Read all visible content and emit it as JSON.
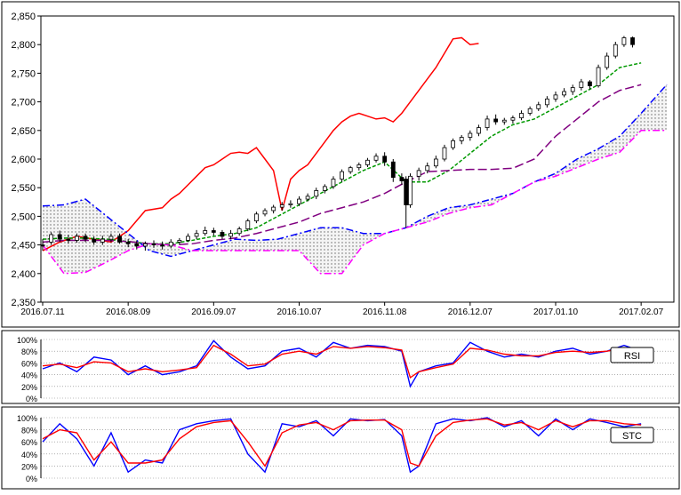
{
  "colors": {
    "frame": "#000000",
    "grid": "#808080",
    "candle_up": "#ffffff",
    "candle_down": "#000000",
    "lagging_span": "#ff0000",
    "conversion_line": "#009900",
    "base_line": "#800080",
    "span_a": "#0000ff",
    "span_b": "#ff00ff",
    "cloud_fill": "#c8c8c8",
    "rsi_line1": "#0000ff",
    "rsi_line2": "#ff0000",
    "stc_line1": "#0000ff",
    "stc_line2": "#ff0000"
  },
  "chart_data": [
    {
      "type": "line",
      "subtype": "candlestick-ichimoku",
      "title": "",
      "ylim": [
        2350,
        2850
      ],
      "yticks": [
        "2,350",
        "2,400",
        "2,450",
        "2,500",
        "2,550",
        "2,600",
        "2,650",
        "2,700",
        "2,750",
        "2,800",
        "2,850"
      ],
      "ytick_values": [
        2350,
        2400,
        2450,
        2500,
        2550,
        2600,
        2650,
        2700,
        2750,
        2800,
        2850
      ],
      "xticks": [
        "2016.07.11",
        "2016.08.09",
        "2016.09.07",
        "2016.10.07",
        "2016.11.08",
        "2016.12.07",
        "2017.01.10",
        "2017.02.07"
      ],
      "xtick_index": [
        0,
        20,
        40,
        60,
        80,
        100,
        120,
        140
      ],
      "xlim": [
        0,
        146
      ],
      "grid": false,
      "candles": [
        [
          0,
          2450,
          2448,
          2460,
          2440
        ],
        [
          2,
          2455,
          2468,
          2472,
          2450
        ],
        [
          4,
          2468,
          2460,
          2475,
          2455
        ],
        [
          6,
          2460,
          2458,
          2468,
          2452
        ],
        [
          8,
          2458,
          2465,
          2470,
          2454
        ],
        [
          10,
          2465,
          2460,
          2470,
          2455
        ],
        [
          12,
          2460,
          2455,
          2465,
          2450
        ],
        [
          14,
          2455,
          2460,
          2466,
          2450
        ],
        [
          16,
          2460,
          2465,
          2470,
          2455
        ],
        [
          18,
          2465,
          2455,
          2470,
          2452
        ],
        [
          20,
          2455,
          2452,
          2460,
          2446
        ],
        [
          22,
          2452,
          2448,
          2458,
          2442
        ],
        [
          24,
          2448,
          2452,
          2456,
          2440
        ],
        [
          26,
          2452,
          2450,
          2458,
          2445
        ],
        [
          28,
          2450,
          2448,
          2456,
          2442
        ],
        [
          30,
          2448,
          2455,
          2460,
          2444
        ],
        [
          32,
          2455,
          2458,
          2462,
          2450
        ],
        [
          34,
          2458,
          2465,
          2470,
          2455
        ],
        [
          36,
          2465,
          2470,
          2476,
          2460
        ],
        [
          38,
          2470,
          2475,
          2482,
          2466
        ],
        [
          40,
          2475,
          2472,
          2480,
          2466
        ],
        [
          42,
          2472,
          2465,
          2476,
          2460
        ],
        [
          44,
          2465,
          2470,
          2476,
          2460
        ],
        [
          46,
          2470,
          2478,
          2482,
          2466
        ],
        [
          48,
          2478,
          2492,
          2496,
          2474
        ],
        [
          50,
          2492,
          2504,
          2508,
          2488
        ],
        [
          52,
          2504,
          2510,
          2514,
          2500
        ],
        [
          54,
          2510,
          2516,
          2520,
          2505
        ],
        [
          56,
          2516,
          2520,
          2525,
          2510
        ],
        [
          58,
          2520,
          2522,
          2528,
          2515
        ],
        [
          60,
          2522,
          2530,
          2535,
          2518
        ],
        [
          62,
          2530,
          2535,
          2540,
          2526
        ],
        [
          64,
          2535,
          2545,
          2550,
          2530
        ],
        [
          66,
          2545,
          2552,
          2556,
          2540
        ],
        [
          68,
          2552,
          2565,
          2570,
          2548
        ],
        [
          70,
          2565,
          2578,
          2582,
          2560
        ],
        [
          72,
          2578,
          2585,
          2588,
          2574
        ],
        [
          74,
          2585,
          2590,
          2594,
          2580
        ],
        [
          76,
          2590,
          2598,
          2602,
          2586
        ],
        [
          78,
          2598,
          2605,
          2610,
          2594
        ],
        [
          80,
          2605,
          2595,
          2612,
          2588
        ],
        [
          82,
          2595,
          2568,
          2600,
          2560
        ],
        [
          84,
          2568,
          2562,
          2575,
          2555
        ],
        [
          85,
          2565,
          2520,
          2570,
          2480
        ],
        [
          86,
          2520,
          2570,
          2575,
          2515
        ],
        [
          88,
          2570,
          2580,
          2585,
          2562
        ],
        [
          90,
          2580,
          2588,
          2594,
          2575
        ],
        [
          92,
          2588,
          2600,
          2606,
          2584
        ],
        [
          94,
          2600,
          2620,
          2625,
          2596
        ],
        [
          96,
          2620,
          2632,
          2636,
          2616
        ],
        [
          98,
          2632,
          2638,
          2642,
          2626
        ],
        [
          100,
          2638,
          2645,
          2650,
          2632
        ],
        [
          102,
          2645,
          2655,
          2660,
          2640
        ],
        [
          104,
          2655,
          2670,
          2676,
          2650
        ],
        [
          106,
          2670,
          2665,
          2678,
          2660
        ],
        [
          108,
          2665,
          2668,
          2672,
          2660
        ],
        [
          110,
          2668,
          2672,
          2676,
          2662
        ],
        [
          112,
          2672,
          2680,
          2685,
          2668
        ],
        [
          114,
          2680,
          2688,
          2692,
          2676
        ],
        [
          116,
          2688,
          2695,
          2700,
          2684
        ],
        [
          118,
          2695,
          2705,
          2710,
          2690
        ],
        [
          120,
          2705,
          2712,
          2718,
          2700
        ],
        [
          122,
          2712,
          2718,
          2724,
          2708
        ],
        [
          124,
          2718,
          2725,
          2730,
          2712
        ],
        [
          126,
          2725,
          2735,
          2740,
          2720
        ],
        [
          128,
          2735,
          2728,
          2738,
          2722
        ],
        [
          130,
          2728,
          2760,
          2765,
          2725
        ],
        [
          132,
          2760,
          2780,
          2786,
          2756
        ],
        [
          134,
          2780,
          2800,
          2805,
          2776
        ],
        [
          136,
          2800,
          2812,
          2815,
          2796
        ],
        [
          138,
          2812,
          2800,
          2814,
          2795
        ]
      ],
      "series": [
        {
          "key": "lagging",
          "x": [
            0,
            4,
            8,
            12,
            16,
            20,
            24,
            28,
            30,
            32,
            34,
            36,
            38,
            40,
            42,
            44,
            46,
            48,
            50,
            52,
            54,
            56,
            58,
            60,
            62,
            64,
            66,
            68,
            70,
            72,
            74,
            76,
            78,
            80,
            82,
            84,
            86,
            88,
            90,
            92,
            94,
            96,
            98,
            100,
            102
          ],
          "values": [
            2440,
            2455,
            2465,
            2460,
            2455,
            2475,
            2510,
            2515,
            2530,
            2540,
            2555,
            2570,
            2585,
            2590,
            2600,
            2610,
            2612,
            2610,
            2620,
            2600,
            2580,
            2510,
            2565,
            2580,
            2590,
            2610,
            2630,
            2650,
            2665,
            2675,
            2680,
            2675,
            2670,
            2672,
            2665,
            2680,
            2700,
            2720,
            2740,
            2760,
            2785,
            2810,
            2812,
            2800,
            2802
          ]
        },
        {
          "key": "conversion",
          "x": [
            0,
            5,
            10,
            15,
            20,
            25,
            30,
            35,
            40,
            45,
            50,
            55,
            60,
            65,
            70,
            75,
            80,
            85,
            90,
            95,
            100,
            105,
            110,
            115,
            120,
            125,
            130,
            135,
            140
          ],
          "values": [
            2460,
            2462,
            2462,
            2460,
            2456,
            2452,
            2452,
            2458,
            2465,
            2470,
            2480,
            2500,
            2520,
            2540,
            2560,
            2580,
            2595,
            2560,
            2560,
            2580,
            2610,
            2640,
            2660,
            2670,
            2690,
            2710,
            2730,
            2760,
            2768
          ]
        },
        {
          "key": "base",
          "x": [
            0,
            5,
            10,
            15,
            20,
            25,
            30,
            35,
            40,
            45,
            50,
            55,
            60,
            65,
            70,
            75,
            80,
            85,
            90,
            95,
            100,
            105,
            110,
            115,
            120,
            125,
            130,
            135,
            140
          ],
          "values": [
            2455,
            2458,
            2458,
            2458,
            2456,
            2452,
            2450,
            2452,
            2458,
            2462,
            2470,
            2480,
            2490,
            2505,
            2515,
            2525,
            2540,
            2560,
            2578,
            2580,
            2582,
            2582,
            2584,
            2600,
            2640,
            2670,
            2700,
            2720,
            2730
          ]
        },
        {
          "key": "span_a",
          "x": [
            0,
            5,
            10,
            15,
            20,
            25,
            30,
            35,
            40,
            45,
            50,
            55,
            60,
            65,
            70,
            75,
            80,
            85,
            90,
            95,
            100,
            105,
            110,
            115,
            120,
            125,
            130,
            135,
            140,
            146
          ],
          "values": [
            2518,
            2520,
            2530,
            2500,
            2470,
            2440,
            2430,
            2440,
            2450,
            2460,
            2458,
            2460,
            2470,
            2480,
            2480,
            2470,
            2470,
            2480,
            2500,
            2515,
            2520,
            2530,
            2540,
            2560,
            2575,
            2600,
            2618,
            2640,
            2680,
            2730
          ]
        },
        {
          "key": "span_b",
          "x": [
            0,
            5,
            10,
            15,
            20,
            25,
            30,
            35,
            40,
            45,
            50,
            55,
            60,
            65,
            70,
            75,
            80,
            85,
            90,
            95,
            100,
            105,
            110,
            115,
            120,
            125,
            130,
            135,
            140,
            146
          ],
          "values": [
            2450,
            2400,
            2402,
            2420,
            2440,
            2452,
            2450,
            2440,
            2440,
            2440,
            2440,
            2440,
            2440,
            2400,
            2400,
            2450,
            2470,
            2480,
            2490,
            2505,
            2515,
            2520,
            2540,
            2560,
            2570,
            2585,
            2600,
            2612,
            2650,
            2650
          ]
        }
      ]
    },
    {
      "type": "line",
      "name": "RSI",
      "label": "RSI",
      "ylim": [
        0,
        100
      ],
      "yticks": [
        "100%",
        "80%",
        "60%",
        "40%",
        "20%",
        "0%"
      ],
      "ytick_values": [
        100,
        80,
        60,
        40,
        20,
        0
      ],
      "grid": true,
      "x": [
        0,
        4,
        8,
        12,
        16,
        20,
        24,
        28,
        32,
        36,
        40,
        44,
        48,
        52,
        56,
        60,
        64,
        68,
        72,
        76,
        80,
        84,
        86,
        88,
        92,
        96,
        100,
        104,
        108,
        112,
        116,
        120,
        124,
        128,
        132,
        136,
        140
      ],
      "series": [
        {
          "values": [
            50,
            60,
            45,
            70,
            65,
            40,
            55,
            40,
            45,
            55,
            98,
            70,
            50,
            55,
            80,
            85,
            70,
            95,
            85,
            90,
            88,
            80,
            20,
            45,
            55,
            60,
            95,
            80,
            70,
            75,
            70,
            80,
            85,
            75,
            80,
            90,
            80
          ]
        },
        {
          "values": [
            55,
            58,
            52,
            62,
            60,
            45,
            50,
            45,
            48,
            52,
            90,
            75,
            55,
            58,
            75,
            80,
            75,
            88,
            85,
            88,
            86,
            82,
            35,
            45,
            52,
            58,
            85,
            82,
            75,
            72,
            72,
            78,
            80,
            78,
            80,
            85,
            80
          ]
        }
      ]
    },
    {
      "type": "line",
      "name": "STC",
      "label": "STC",
      "ylim": [
        0,
        100
      ],
      "yticks": [
        "100%",
        "80%",
        "60%",
        "40%",
        "20%",
        "0%"
      ],
      "ytick_values": [
        100,
        80,
        60,
        40,
        20,
        0
      ],
      "grid": true,
      "x": [
        0,
        4,
        8,
        12,
        16,
        20,
        24,
        28,
        32,
        36,
        40,
        44,
        48,
        52,
        56,
        60,
        64,
        68,
        72,
        76,
        80,
        84,
        86,
        88,
        92,
        96,
        100,
        104,
        108,
        112,
        116,
        120,
        124,
        128,
        132,
        136,
        140
      ],
      "series": [
        {
          "values": [
            60,
            90,
            65,
            20,
            75,
            10,
            30,
            25,
            80,
            90,
            95,
            98,
            40,
            10,
            90,
            85,
            95,
            70,
            98,
            95,
            97,
            70,
            10,
            20,
            90,
            98,
            95,
            100,
            85,
            95,
            70,
            98,
            80,
            98,
            92,
            85,
            90
          ]
        },
        {
          "values": [
            65,
            80,
            75,
            30,
            60,
            25,
            25,
            30,
            65,
            85,
            92,
            95,
            60,
            20,
            75,
            88,
            92,
            80,
            95,
            96,
            96,
            80,
            25,
            20,
            70,
            92,
            96,
            98,
            88,
            92,
            80,
            95,
            85,
            95,
            95,
            90,
            88
          ]
        }
      ]
    }
  ]
}
